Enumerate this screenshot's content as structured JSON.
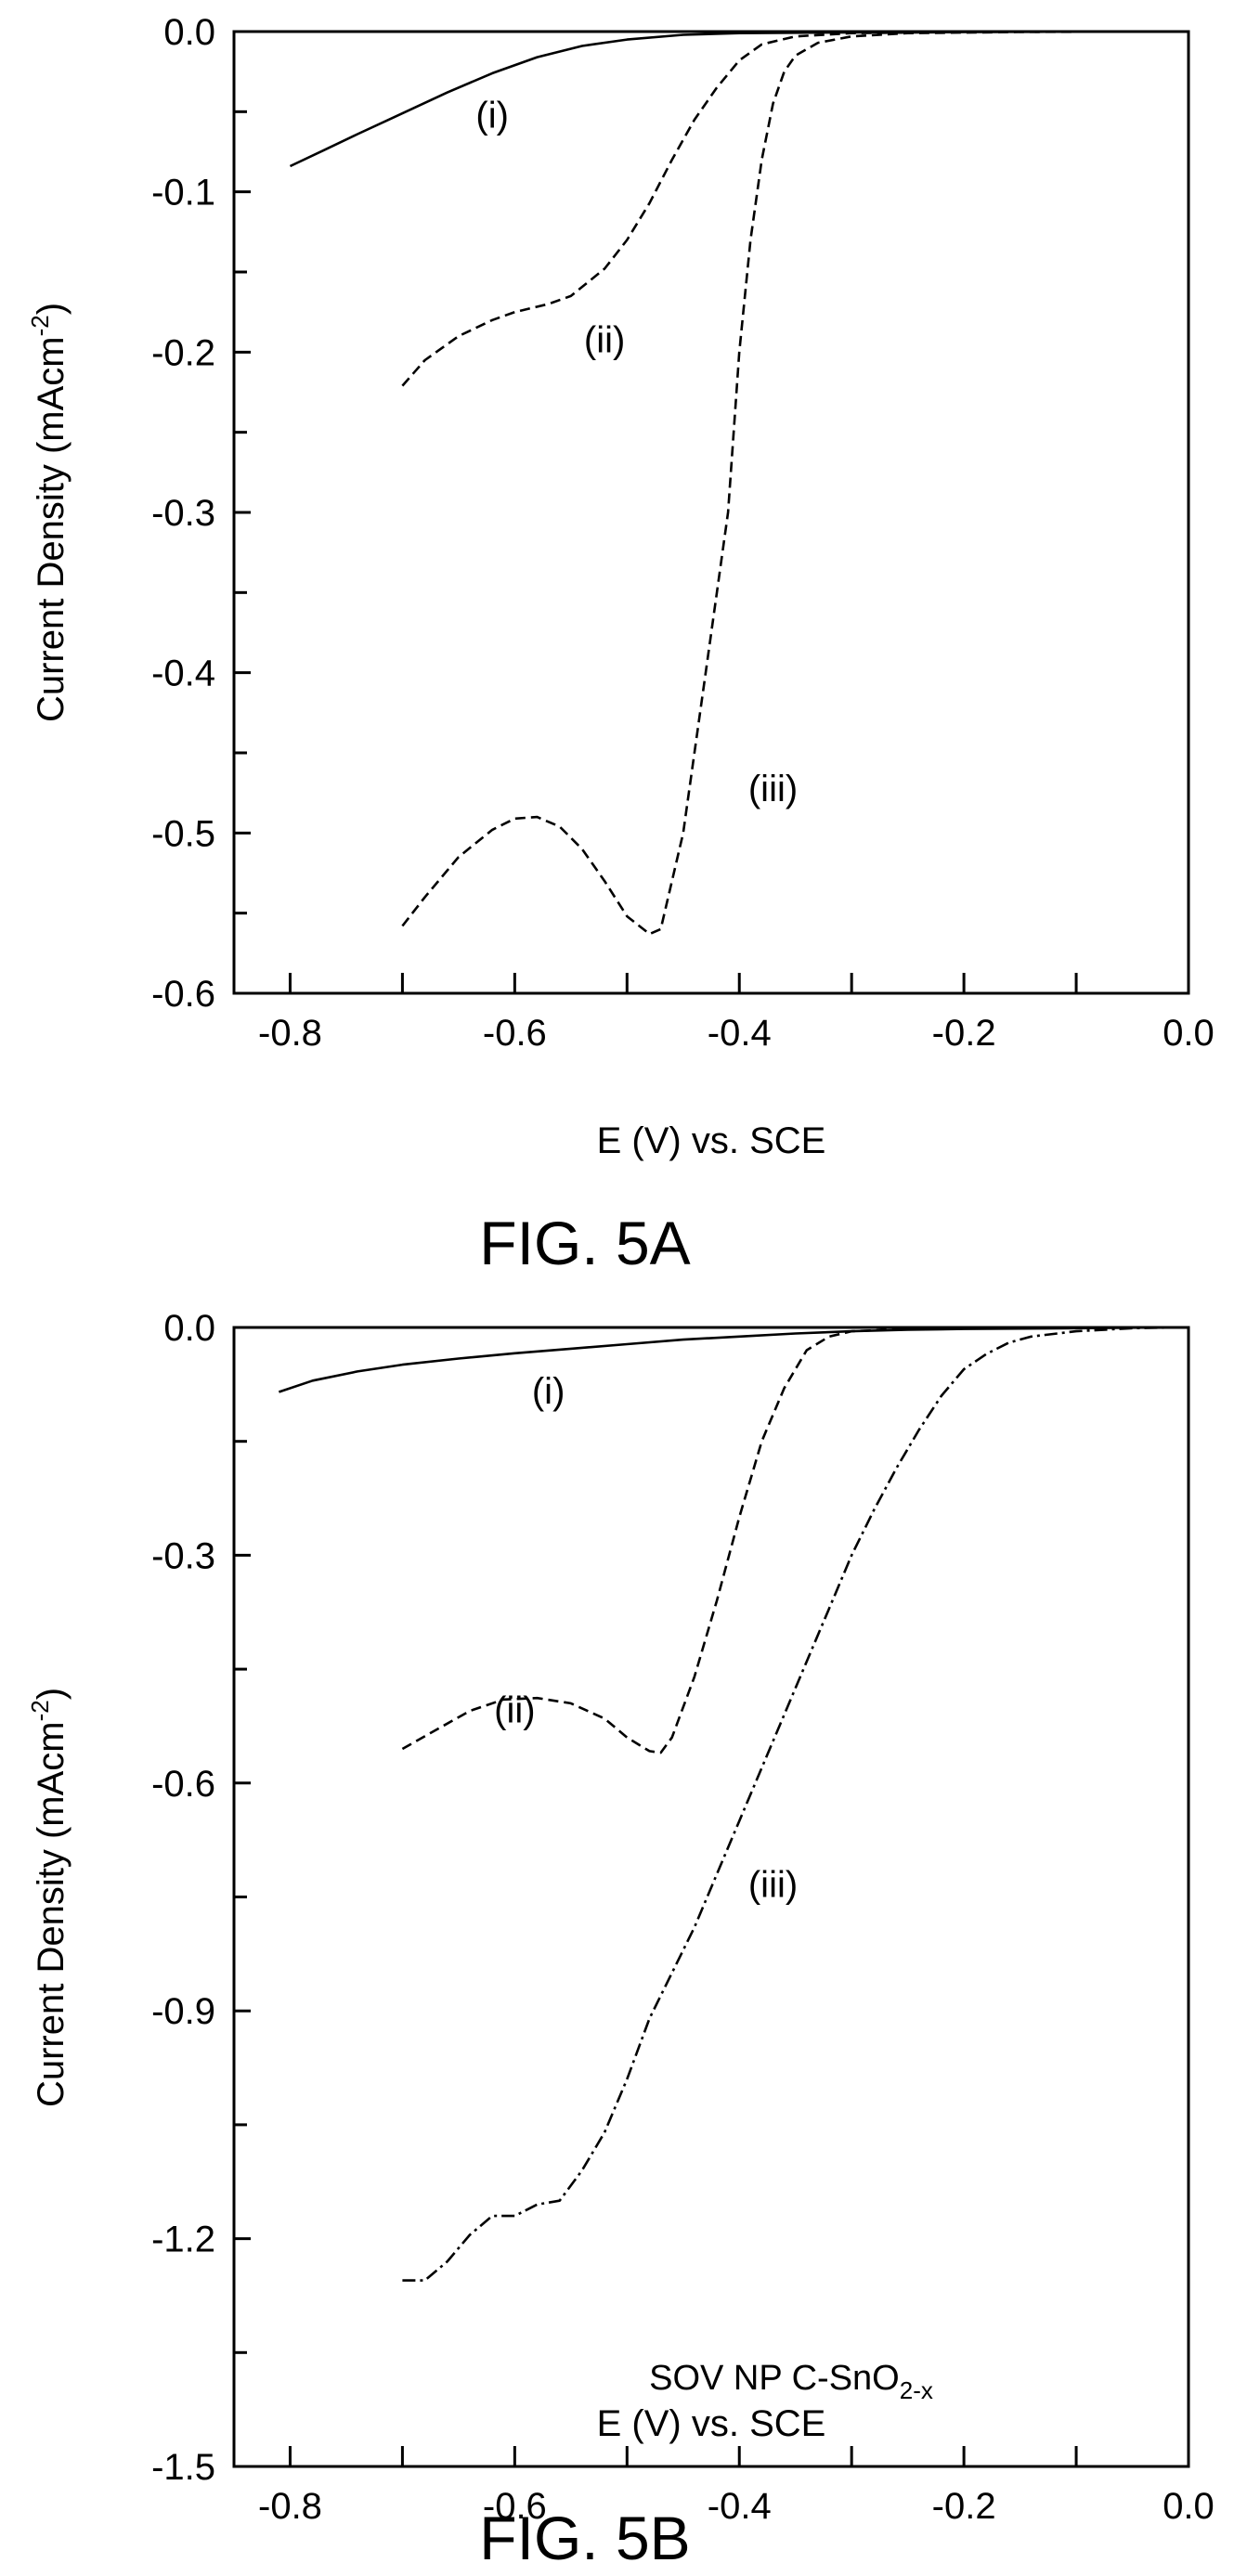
{
  "chart_data": [
    {
      "type": "line",
      "figure_label": "FIG. 5A",
      "xlabel": "E (V) vs. SCE",
      "ylabel": "Current Density (mAcm",
      "ylabel_sup": "-2",
      "ylabel_close": ")",
      "xlim": [
        -0.85,
        0.0
      ],
      "ylim": [
        -0.6,
        0.0
      ],
      "x_ticks": [
        -0.8,
        -0.6,
        -0.4,
        -0.2,
        0.0
      ],
      "x_tick_labels": [
        "-0.8",
        "-0.6",
        "-0.4",
        "-0.2",
        "0.0"
      ],
      "y_ticks": [
        0.0,
        -0.1,
        -0.2,
        -0.3,
        -0.4,
        -0.5,
        -0.6
      ],
      "y_tick_labels": [
        "0.0",
        "-0.1",
        "-0.2",
        "-0.3",
        "-0.4",
        "-0.5",
        "-0.6"
      ],
      "grid": false,
      "series": [
        {
          "name": "(i)",
          "style": "solid",
          "points": [
            [
              -0.8,
              -0.084
            ],
            [
              -0.77,
              -0.074
            ],
            [
              -0.74,
              -0.064
            ],
            [
              -0.7,
              -0.051
            ],
            [
              -0.66,
              -0.038
            ],
            [
              -0.62,
              -0.026
            ],
            [
              -0.58,
              -0.016
            ],
            [
              -0.54,
              -0.009
            ],
            [
              -0.5,
              -0.005
            ],
            [
              -0.45,
              -0.002
            ],
            [
              -0.4,
              -0.001
            ],
            [
              -0.3,
              -0.0005
            ],
            [
              -0.2,
              -0.0002
            ],
            [
              -0.05,
              0.0
            ]
          ]
        },
        {
          "name": "(ii)",
          "style": "dashed",
          "points": [
            [
              -0.7,
              -0.221
            ],
            [
              -0.68,
              -0.205
            ],
            [
              -0.65,
              -0.19
            ],
            [
              -0.62,
              -0.18
            ],
            [
              -0.6,
              -0.175
            ],
            [
              -0.57,
              -0.17
            ],
            [
              -0.55,
              -0.165
            ],
            [
              -0.52,
              -0.148
            ],
            [
              -0.5,
              -0.13
            ],
            [
              -0.48,
              -0.107
            ],
            [
              -0.46,
              -0.08
            ],
            [
              -0.44,
              -0.055
            ],
            [
              -0.42,
              -0.035
            ],
            [
              -0.4,
              -0.018
            ],
            [
              -0.38,
              -0.008
            ],
            [
              -0.35,
              -0.003
            ],
            [
              -0.3,
              -0.001
            ],
            [
              -0.2,
              -0.0003
            ],
            [
              -0.05,
              0.0
            ]
          ]
        },
        {
          "name": "(iii)",
          "style": "dashed",
          "points": [
            [
              -0.7,
              -0.558
            ],
            [
              -0.68,
              -0.54
            ],
            [
              -0.65,
              -0.515
            ],
            [
              -0.62,
              -0.498
            ],
            [
              -0.6,
              -0.491
            ],
            [
              -0.58,
              -0.49
            ],
            [
              -0.56,
              -0.496
            ],
            [
              -0.54,
              -0.51
            ],
            [
              -0.52,
              -0.53
            ],
            [
              -0.5,
              -0.552
            ],
            [
              -0.48,
              -0.563
            ],
            [
              -0.47,
              -0.56
            ],
            [
              -0.45,
              -0.5
            ],
            [
              -0.43,
              -0.4
            ],
            [
              -0.41,
              -0.3
            ],
            [
              -0.4,
              -0.2
            ],
            [
              -0.39,
              -0.13
            ],
            [
              -0.38,
              -0.08
            ],
            [
              -0.37,
              -0.045
            ],
            [
              -0.36,
              -0.025
            ],
            [
              -0.35,
              -0.015
            ],
            [
              -0.33,
              -0.007
            ],
            [
              -0.3,
              -0.003
            ],
            [
              -0.25,
              -0.001
            ],
            [
              -0.15,
              -0.0003
            ],
            [
              -0.05,
              0.0
            ]
          ]
        }
      ]
    },
    {
      "type": "line",
      "figure_label": "FIG. 5B",
      "xlabel": "E (V) vs. SCE",
      "ylabel": "Current Density (mAcm",
      "ylabel_sup": "-2",
      "ylabel_close": ")",
      "annotation": "SOV NP C-SnO",
      "annotation_sub": "2-x",
      "xlim": [
        -0.85,
        0.0
      ],
      "ylim": [
        -1.5,
        0.0
      ],
      "x_ticks": [
        -0.8,
        -0.6,
        -0.4,
        -0.2,
        0.0
      ],
      "x_tick_labels": [
        "-0.8",
        "-0.6",
        "-0.4",
        "-0.2",
        "0.0"
      ],
      "y_ticks": [
        0.0,
        -0.3,
        -0.6,
        -0.9,
        -1.2,
        -1.5
      ],
      "y_tick_labels": [
        "0.0",
        "-0.3",
        "-0.6",
        "-0.9",
        "-1.2",
        "-1.5"
      ],
      "grid": false,
      "series": [
        {
          "name": "(i)",
          "style": "solid",
          "points": [
            [
              -0.81,
              -0.085
            ],
            [
              -0.78,
              -0.07
            ],
            [
              -0.74,
              -0.058
            ],
            [
              -0.7,
              -0.049
            ],
            [
              -0.65,
              -0.041
            ],
            [
              -0.6,
              -0.034
            ],
            [
              -0.55,
              -0.028
            ],
            [
              -0.5,
              -0.022
            ],
            [
              -0.45,
              -0.016
            ],
            [
              -0.4,
              -0.012
            ],
            [
              -0.35,
              -0.008
            ],
            [
              -0.3,
              -0.005
            ],
            [
              -0.25,
              -0.003
            ],
            [
              -0.2,
              -0.002
            ],
            [
              -0.1,
              -0.001
            ],
            [
              -0.02,
              0.0
            ]
          ]
        },
        {
          "name": "(ii)",
          "style": "dashed",
          "points": [
            [
              -0.7,
              -0.555
            ],
            [
              -0.67,
              -0.53
            ],
            [
              -0.64,
              -0.505
            ],
            [
              -0.61,
              -0.49
            ],
            [
              -0.58,
              -0.488
            ],
            [
              -0.55,
              -0.495
            ],
            [
              -0.52,
              -0.515
            ],
            [
              -0.5,
              -0.54
            ],
            [
              -0.48,
              -0.558
            ],
            [
              -0.47,
              -0.56
            ],
            [
              -0.46,
              -0.54
            ],
            [
              -0.44,
              -0.46
            ],
            [
              -0.42,
              -0.36
            ],
            [
              -0.4,
              -0.25
            ],
            [
              -0.38,
              -0.15
            ],
            [
              -0.36,
              -0.08
            ],
            [
              -0.34,
              -0.03
            ],
            [
              -0.32,
              -0.012
            ],
            [
              -0.3,
              -0.005
            ],
            [
              -0.25,
              -0.002
            ],
            [
              -0.15,
              -0.0005
            ],
            [
              -0.02,
              0.0
            ]
          ]
        },
        {
          "name": "(iii)",
          "style": "dashdot",
          "points": [
            [
              -0.7,
              -1.255
            ],
            [
              -0.68,
              -1.255
            ],
            [
              -0.66,
              -1.23
            ],
            [
              -0.64,
              -1.195
            ],
            [
              -0.62,
              -1.17
            ],
            [
              -0.6,
              -1.17
            ],
            [
              -0.58,
              -1.155
            ],
            [
              -0.56,
              -1.15
            ],
            [
              -0.54,
              -1.11
            ],
            [
              -0.52,
              -1.06
            ],
            [
              -0.5,
              -0.99
            ],
            [
              -0.48,
              -0.91
            ],
            [
              -0.46,
              -0.85
            ],
            [
              -0.44,
              -0.79
            ],
            [
              -0.42,
              -0.72
            ],
            [
              -0.4,
              -0.65
            ],
            [
              -0.38,
              -0.58
            ],
            [
              -0.36,
              -0.51
            ],
            [
              -0.34,
              -0.44
            ],
            [
              -0.32,
              -0.37
            ],
            [
              -0.3,
              -0.3
            ],
            [
              -0.28,
              -0.24
            ],
            [
              -0.26,
              -0.185
            ],
            [
              -0.24,
              -0.135
            ],
            [
              -0.22,
              -0.09
            ],
            [
              -0.2,
              -0.055
            ],
            [
              -0.18,
              -0.035
            ],
            [
              -0.16,
              -0.02
            ],
            [
              -0.14,
              -0.012
            ],
            [
              -0.1,
              -0.005
            ],
            [
              -0.05,
              -0.001
            ],
            [
              -0.01,
              0.0
            ]
          ]
        }
      ]
    }
  ]
}
